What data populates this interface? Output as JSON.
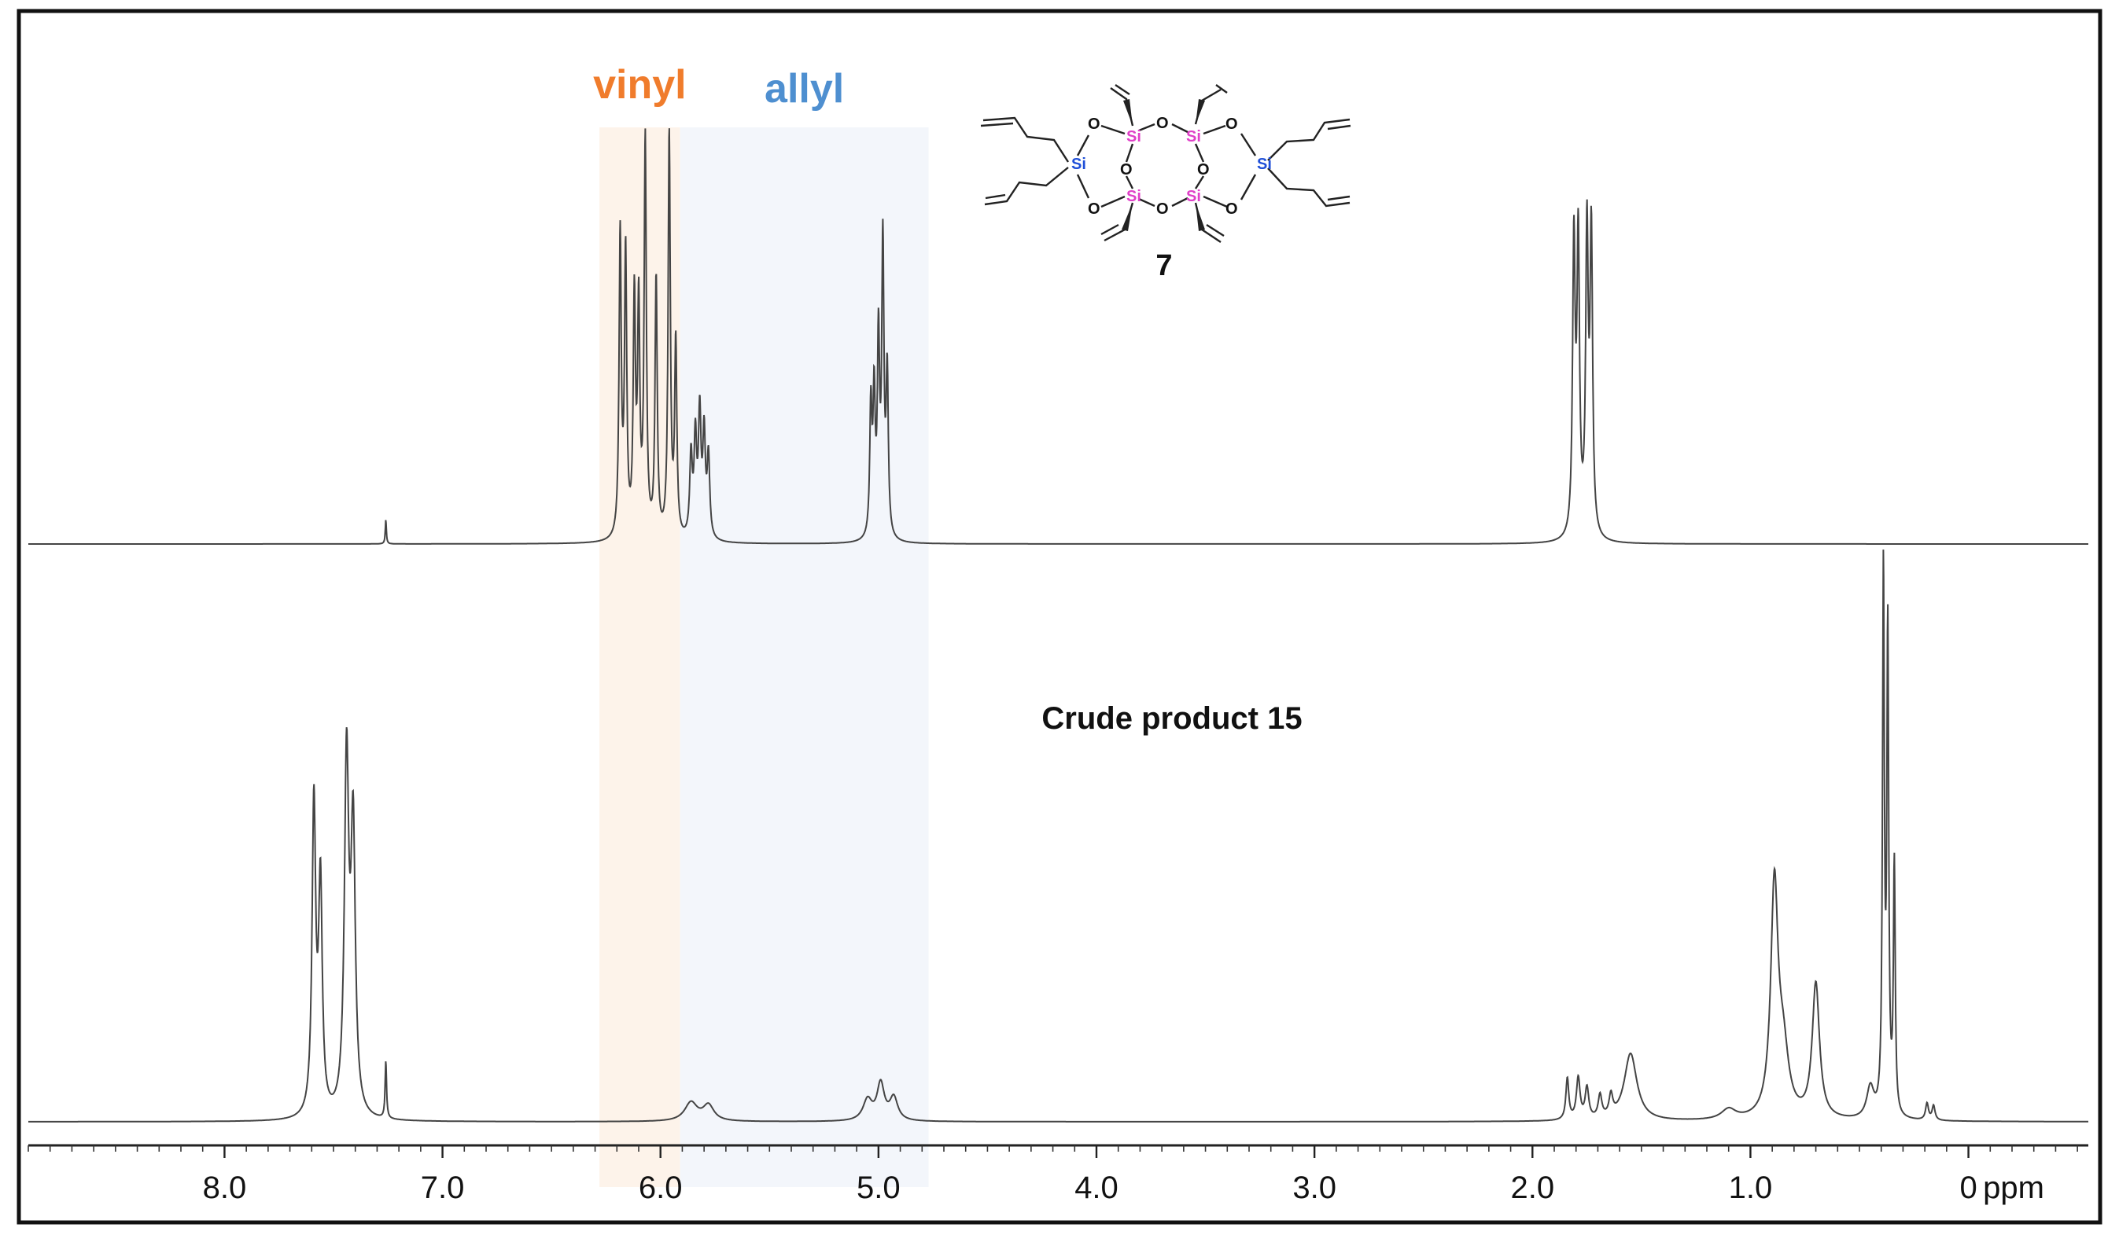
{
  "chart_data": {
    "type": "line",
    "xlabel": "ppm",
    "xlim": [
      8.9,
      -0.55
    ],
    "x_direction": "reversed",
    "ticks": [
      {
        "value": 8.0,
        "label": "8.0"
      },
      {
        "value": 7.0,
        "label": "7.0"
      },
      {
        "value": 6.0,
        "label": "6.0"
      },
      {
        "value": 5.0,
        "label": "5.0"
      },
      {
        "value": 4.0,
        "label": "4.0"
      },
      {
        "value": 3.0,
        "label": "3.0"
      },
      {
        "value": 2.0,
        "label": "2.0"
      },
      {
        "value": 1.0,
        "label": "1.0"
      },
      {
        "value": 0.0,
        "label": "0"
      }
    ],
    "regions": [
      {
        "name": "vinyl",
        "label": "vinyl",
        "from": 6.28,
        "to": 5.91,
        "color": "#f07c2c",
        "fill": "#fdf3ea"
      },
      {
        "name": "allyl",
        "label": "allyl",
        "from": 5.91,
        "to": 4.77,
        "color": "#4e8fd0",
        "fill": "#f3f6fb"
      }
    ],
    "series": [
      {
        "name": "compound-7",
        "label": "7",
        "peaks": [
          {
            "ppm": 7.26,
            "height": 0.06,
            "width": 0.003
          },
          {
            "ppm": 6.185,
            "height": 0.75,
            "width": 0.006
          },
          {
            "ppm": 6.16,
            "height": 0.7,
            "width": 0.006
          },
          {
            "ppm": 6.12,
            "height": 0.58,
            "width": 0.006
          },
          {
            "ppm": 6.1,
            "height": 0.56,
            "width": 0.006
          },
          {
            "ppm": 6.07,
            "height": 0.98,
            "width": 0.006
          },
          {
            "ppm": 6.02,
            "height": 0.64,
            "width": 0.006
          },
          {
            "ppm": 5.96,
            "height": 1.0,
            "width": 0.006
          },
          {
            "ppm": 5.93,
            "height": 0.48,
            "width": 0.006
          },
          {
            "ppm": 5.86,
            "height": 0.2,
            "width": 0.007
          },
          {
            "ppm": 5.84,
            "height": 0.24,
            "width": 0.007
          },
          {
            "ppm": 5.82,
            "height": 0.3,
            "width": 0.007
          },
          {
            "ppm": 5.8,
            "height": 0.25,
            "width": 0.007
          },
          {
            "ppm": 5.78,
            "height": 0.2,
            "width": 0.007
          },
          {
            "ppm": 5.035,
            "height": 0.32,
            "width": 0.006
          },
          {
            "ppm": 5.02,
            "height": 0.34,
            "width": 0.006
          },
          {
            "ppm": 5.0,
            "height": 0.48,
            "width": 0.006
          },
          {
            "ppm": 4.98,
            "height": 0.72,
            "width": 0.006
          },
          {
            "ppm": 4.96,
            "height": 0.4,
            "width": 0.006
          },
          {
            "ppm": 1.81,
            "height": 0.72,
            "width": 0.007
          },
          {
            "ppm": 1.79,
            "height": 0.72,
            "width": 0.007
          },
          {
            "ppm": 1.75,
            "height": 0.74,
            "width": 0.007
          },
          {
            "ppm": 1.73,
            "height": 0.74,
            "width": 0.007
          }
        ]
      },
      {
        "name": "crude-product-15",
        "label": "Crude product 15",
        "peaks": [
          {
            "ppm": 7.59,
            "height": 0.3,
            "width": 0.01
          },
          {
            "ppm": 7.56,
            "height": 0.22,
            "width": 0.01
          },
          {
            "ppm": 7.44,
            "height": 0.34,
            "width": 0.012
          },
          {
            "ppm": 7.41,
            "height": 0.27,
            "width": 0.012
          },
          {
            "ppm": 7.26,
            "height": 0.055,
            "width": 0.004
          },
          {
            "ppm": 5.86,
            "height": 0.018,
            "width": 0.035
          },
          {
            "ppm": 5.78,
            "height": 0.015,
            "width": 0.03
          },
          {
            "ppm": 5.05,
            "height": 0.02,
            "width": 0.025
          },
          {
            "ppm": 4.99,
            "height": 0.035,
            "width": 0.02
          },
          {
            "ppm": 4.93,
            "height": 0.022,
            "width": 0.022
          },
          {
            "ppm": 1.84,
            "height": 0.04,
            "width": 0.008
          },
          {
            "ppm": 1.79,
            "height": 0.04,
            "width": 0.01
          },
          {
            "ppm": 1.75,
            "height": 0.03,
            "width": 0.01
          },
          {
            "ppm": 1.69,
            "height": 0.022,
            "width": 0.01
          },
          {
            "ppm": 1.64,
            "height": 0.02,
            "width": 0.01
          },
          {
            "ppm": 1.55,
            "height": 0.065,
            "width": 0.035
          },
          {
            "ppm": 1.1,
            "height": 0.01,
            "width": 0.04
          },
          {
            "ppm": 0.89,
            "height": 0.22,
            "width": 0.02
          },
          {
            "ppm": 0.85,
            "height": 0.06,
            "width": 0.03
          },
          {
            "ppm": 0.7,
            "height": 0.13,
            "width": 0.02
          },
          {
            "ppm": 0.45,
            "height": 0.03,
            "width": 0.02
          },
          {
            "ppm": 0.39,
            "height": 0.52,
            "width": 0.005
          },
          {
            "ppm": 0.37,
            "height": 0.46,
            "width": 0.005
          },
          {
            "ppm": 0.34,
            "height": 0.24,
            "width": 0.005
          },
          {
            "ppm": 0.19,
            "height": 0.016,
            "width": 0.008
          },
          {
            "ppm": 0.16,
            "height": 0.014,
            "width": 0.008
          }
        ]
      }
    ]
  },
  "annotations": {
    "crude_label": "Crude product 15",
    "compound_number": "7",
    "structure_atoms": {
      "si": "Si",
      "o": "O"
    },
    "atom_colors": {
      "si_core": "#e040c8",
      "si_side": "#1f4fd8",
      "o": "#111111",
      "bond": "#222222"
    }
  }
}
